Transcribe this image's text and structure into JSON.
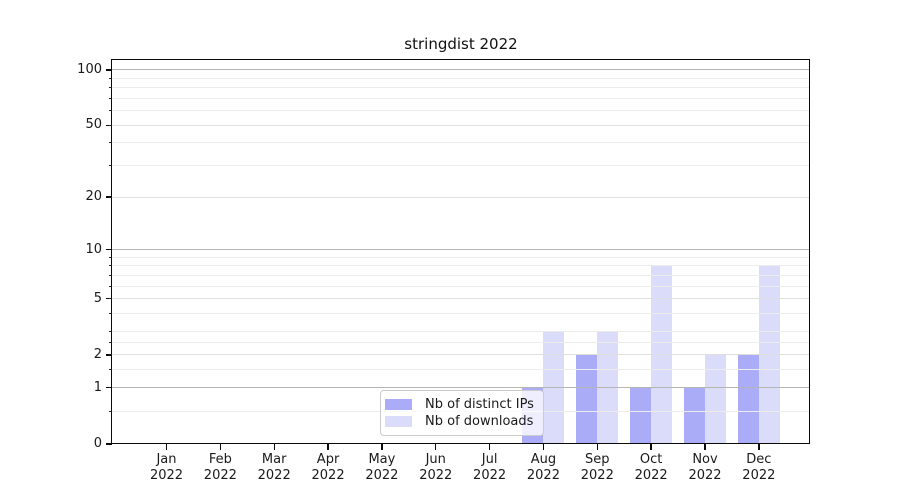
{
  "chart_data": {
    "type": "bar",
    "title": "stringdist 2022",
    "categories": [
      "Jan 2022",
      "Feb 2022",
      "Mar 2022",
      "Apr 2022",
      "May 2022",
      "Jun 2022",
      "Jul 2022",
      "Aug 2022",
      "Sep 2022",
      "Oct 2022",
      "Nov 2022",
      "Dec 2022"
    ],
    "series": [
      {
        "name": "Nb of distinct IPs",
        "color": "#abacf8",
        "values": [
          0,
          0,
          0,
          0,
          0,
          0,
          0,
          1,
          2,
          1,
          1,
          2
        ]
      },
      {
        "name": "Nb of downloads",
        "color": "#dadcfa",
        "values": [
          0,
          0,
          0,
          0,
          0,
          0,
          0,
          3,
          3,
          8,
          2,
          8
        ]
      }
    ],
    "xlabel": "",
    "ylabel": "",
    "y_scale": "log1p",
    "ylim": [
      0,
      113
    ],
    "y_major_ticks": [
      0,
      1,
      2,
      5,
      10,
      20,
      50,
      100
    ],
    "y_gridlines": {
      "decade": [
        1,
        10,
        100
      ],
      "labeled": [
        2,
        5,
        20,
        50
      ],
      "minor": [
        0.5,
        1.5,
        2.5,
        3,
        4,
        6,
        7,
        8,
        9,
        30,
        40,
        60,
        70,
        80,
        90
      ]
    },
    "grid": "on",
    "legend_position": "lower center",
    "colors": {
      "decade_grid": "#b5b5b5",
      "labeled_grid": "#dedede",
      "minor_grid": "#ececec",
      "spine": "#0a0a0a",
      "background": "#ffffff"
    }
  }
}
